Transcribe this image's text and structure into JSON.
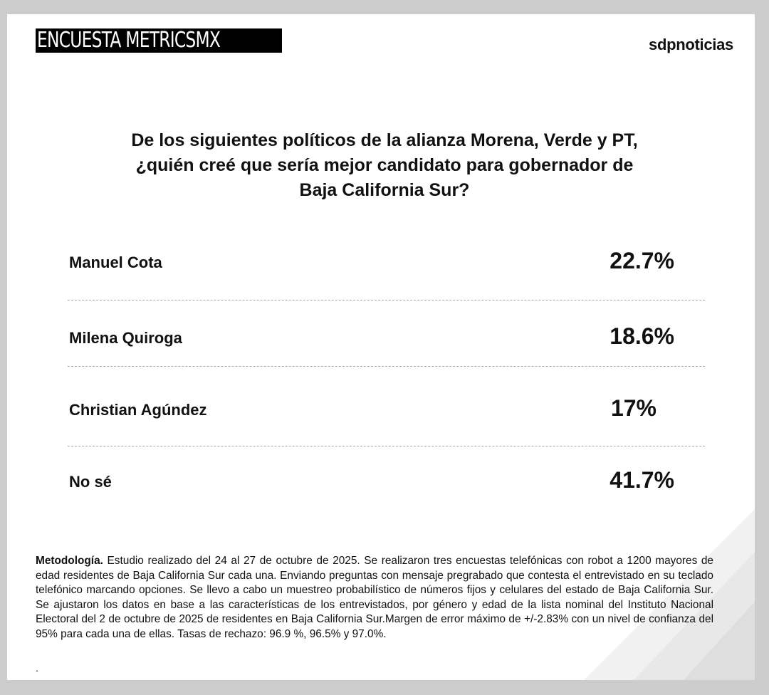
{
  "header": {
    "brand": "ENCUESTA METRICSMX",
    "logo": "sdpnoticias"
  },
  "question": [
    "De los siguientes políticos de la alianza Morena, Verde y PT,",
    "¿quién creé que sería mejor candidato para gobernador de",
    "Baja California Sur?"
  ],
  "chart_data": {
    "type": "table",
    "title": "De los siguientes políticos de la alianza Morena, Verde y PT, ¿quién creé que sería mejor candidato para gobernador de Baja California Sur?",
    "categories": [
      "Manuel Cota",
      "Milena Quiroga",
      "Christian Agúndez",
      "No sé"
    ],
    "values": [
      22.7,
      18.6,
      17,
      41.7
    ],
    "labels": [
      "22.7%",
      "18.6%",
      "17%",
      "41.7%"
    ]
  },
  "methodology": {
    "heading": "Metodología.",
    "text": " Estudio realizado del 24 al 27 de octubre de 2025. Se realizaron tres encuestas telefónicas con robot a 1200 mayores de edad residentes de Baja California Sur cada una. Enviando preguntas con mensaje pregrabado que contesta el entrevistado en su teclado telefónico marcando opciones. Se llevo a cabo un muestreo probabilístico de números fijos y celulares del estado de Baja California Sur. Se ajustaron los datos en base a las características de los entrevistados, por género y edad de la lista nominal del Instituto Nacional Electoral del 2 de octubre de 2025 de residentes en Baja California Sur.Margen de error máximo de +/-2.83% con un nivel de confianza del 95% para cada una de ellas. Tasas de rechazo: 96.9 %, 96.5% y 97.0%.",
    "trailing": "."
  },
  "colors": {
    "background": "#cccccc",
    "card": "#ffffff",
    "text": "#111111",
    "brand_bg": "#000000"
  }
}
